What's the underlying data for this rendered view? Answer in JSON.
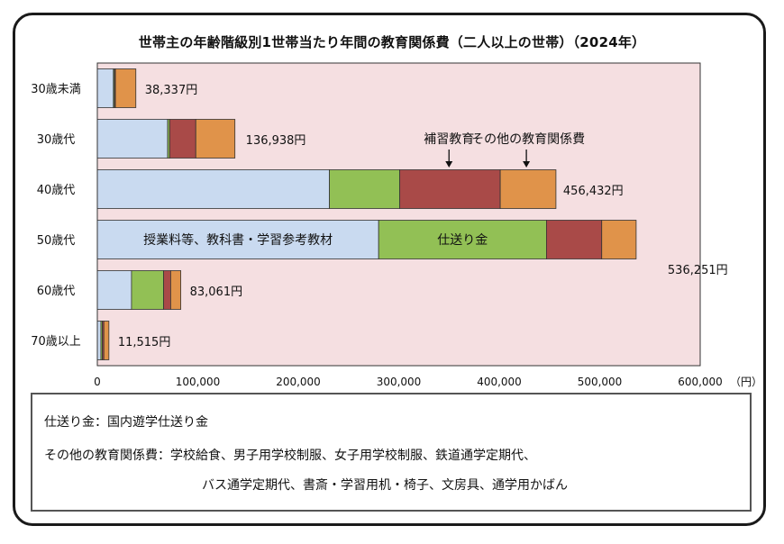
{
  "chart_data": {
    "type": "bar",
    "orientation": "horizontal",
    "stacked": true,
    "title": "世帯主の年齢階級別1世帯当たり年間の教育関係費（二人以上の世帯）（2024年）",
    "unit_label": "（円）",
    "xlim": [
      0,
      600000
    ],
    "x_ticks": [
      "0",
      "100,000",
      "200,000",
      "300,000",
      "400,000",
      "500,000",
      "600,000"
    ],
    "x_tick_values": [
      0,
      100000,
      200000,
      300000,
      400000,
      500000,
      600000
    ],
    "grid": false,
    "plot_background": "#f5dfe1",
    "categories": [
      "30歳未満",
      "30歳代",
      "40歳代",
      "50歳代",
      "60歳代",
      "70歳以上"
    ],
    "totals": [
      38337,
      136938,
      456432,
      536251,
      83061,
      11515
    ],
    "total_labels": [
      "38,337円",
      "136,938円",
      "456,432円",
      "536,251円",
      "83,061円",
      "11,515円"
    ],
    "series": [
      {
        "name": "授業料等、教科書・学習参考教材",
        "color": "#c9daf0",
        "values": [
          16000,
          70000,
          231000,
          280000,
          34000,
          3500
        ]
      },
      {
        "name": "仕送り金",
        "color": "#92c055",
        "values": [
          1000,
          2000,
          70000,
          167000,
          32000,
          1500
        ]
      },
      {
        "name": "補習教育",
        "color": "#a94a48",
        "values": [
          1000,
          26000,
          100000,
          55000,
          7000,
          1500
        ]
      },
      {
        "name": "その他の教育関係費",
        "color": "#e0934a",
        "values": [
          20337,
          38938,
          55432,
          34251,
          10061,
          5015
        ]
      }
    ],
    "annotations": [
      "補習教育",
      "その他の教育関係費",
      "授業料等、教科書・学習参考教材",
      "仕送り金"
    ]
  },
  "notes": {
    "line1": "仕送り金：国内遊学仕送り金",
    "line2": "その他の教育関係費：学校給食、男子用学校制服、女子用学校制服、鉄道通学定期代、",
    "line3": "バス通学定期代、書斎・学習用机・椅子、文房具、通学用かばん"
  }
}
